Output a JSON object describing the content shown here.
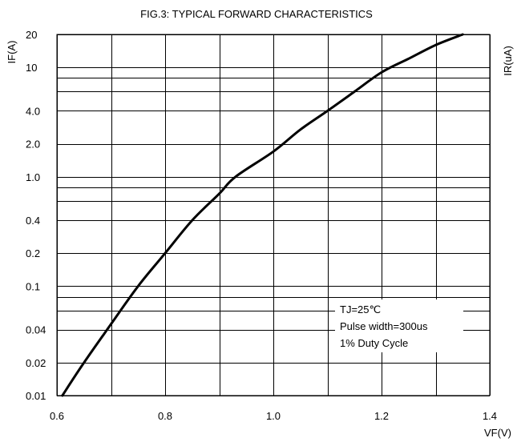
{
  "chart_data": {
    "type": "line",
    "title": "FIG.3: TYPICAL FORWARD CHARACTERISTICS",
    "xlabel": "VF(V)",
    "ylabel": "IF(A)",
    "ylabel_right": "IR(uA)",
    "xlim": [
      0.6,
      1.4
    ],
    "ylim": [
      0.01,
      20
    ],
    "yscale": "log",
    "grid": true,
    "x_ticks": [
      "0.6",
      "0.8",
      "1.0",
      "1.2",
      "1.4"
    ],
    "y_ticks": [
      {
        "value": 0.01,
        "label": "0.01"
      },
      {
        "value": 0.02,
        "label": "0.02"
      },
      {
        "value": 0.04,
        "label": "0.04"
      },
      {
        "value": 0.1,
        "label": "0.1"
      },
      {
        "value": 0.2,
        "label": "0.2"
      },
      {
        "value": 0.4,
        "label": "0.4"
      },
      {
        "value": 1.0,
        "label": "1.0"
      },
      {
        "value": 2.0,
        "label": "2.0"
      },
      {
        "value": 4.0,
        "label": "4.0"
      },
      {
        "value": 10,
        "label": "10"
      },
      {
        "value": 20,
        "label": "20"
      }
    ],
    "x_grid": [
      0.6,
      0.7,
      0.8,
      0.9,
      1.0,
      1.1,
      1.2,
      1.3,
      1.4
    ],
    "y_grid": [
      0.01,
      0.02,
      0.04,
      0.06,
      0.08,
      0.1,
      0.2,
      0.4,
      0.6,
      0.8,
      1.0,
      2.0,
      4.0,
      6.0,
      8.0,
      10,
      20
    ],
    "series": [
      {
        "x": [
          0.61,
          0.65,
          0.7,
          0.75,
          0.8,
          0.85,
          0.9,
          0.93,
          1.0,
          1.05,
          1.1,
          1.15,
          1.2,
          1.25,
          1.3,
          1.35
        ],
        "y": [
          0.01,
          0.02,
          0.045,
          0.1,
          0.2,
          0.4,
          0.7,
          1.0,
          1.7,
          2.7,
          4.0,
          6.0,
          9.0,
          12.0,
          16.0,
          20.0
        ]
      }
    ],
    "annotations": [
      "TJ=25℃",
      "Pulse width=300us",
      "1% Duty Cycle"
    ]
  }
}
